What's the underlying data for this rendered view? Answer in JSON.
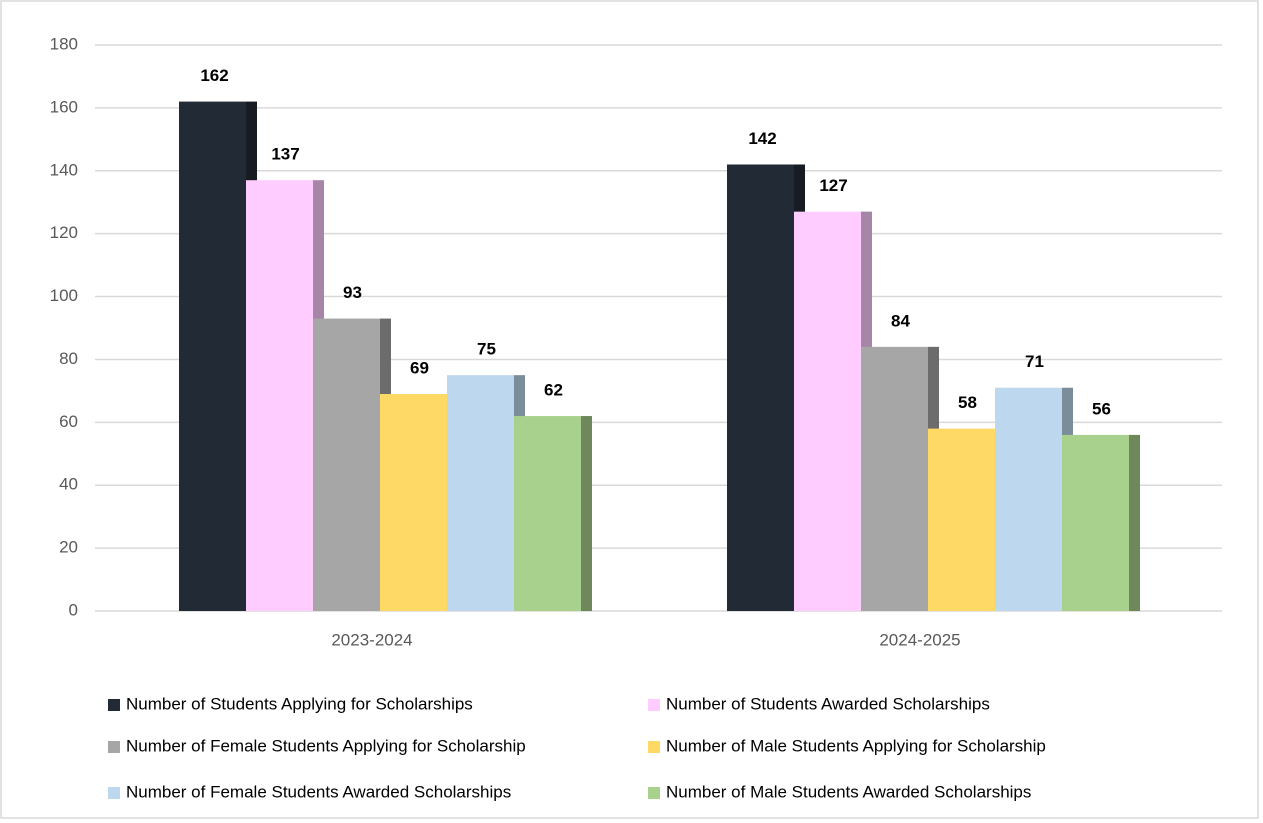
{
  "chart_data": {
    "type": "bar",
    "categories": [
      "2023-2024",
      "2024-2025"
    ],
    "series": [
      {
        "name": "Number of Students Applying for Scholarships",
        "color": "#222b35",
        "values": [
          162,
          142
        ]
      },
      {
        "name": "Number of Students Awarded Scholarships",
        "color": "#ffccff",
        "values": [
          137,
          127
        ]
      },
      {
        "name": "Number of Female Students Applying for Scholarship",
        "color": "#a6a6a6",
        "values": [
          93,
          84
        ]
      },
      {
        "name": "Number of Male Students Applying for Scholarship",
        "color": "#ffd966",
        "values": [
          69,
          58
        ]
      },
      {
        "name": "Number of Female Students Awarded Scholarships",
        "color": "#bdd7ee",
        "values": [
          75,
          71
        ]
      },
      {
        "name": "Number of Male Students Awarded Scholarships",
        "color": "#a9d18e",
        "values": [
          62,
          56
        ]
      }
    ],
    "ylim": [
      0,
      180
    ],
    "yticks": [
      0,
      20,
      40,
      60,
      80,
      100,
      120,
      140,
      160,
      180
    ],
    "grid": true,
    "legend": "bottom"
  }
}
